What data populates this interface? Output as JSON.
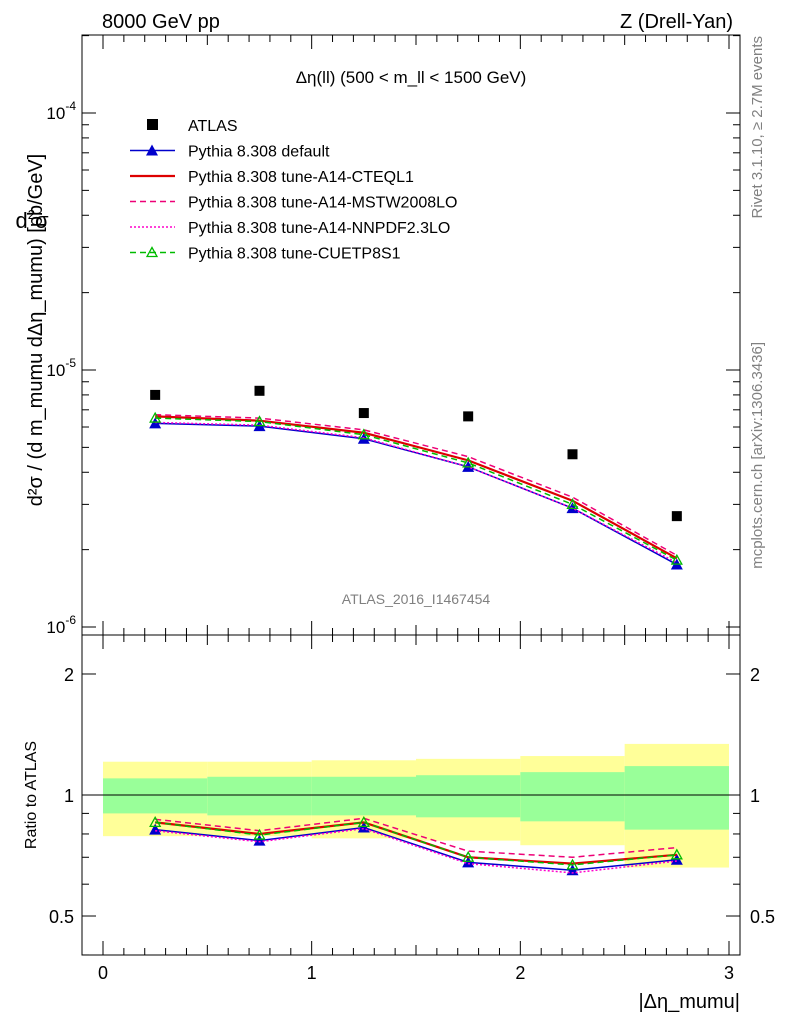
{
  "header": {
    "left": "8000 GeV pp",
    "right": "Z (Drell-Yan)"
  },
  "side_text": {
    "rivet": "Rivet 3.1.10, ≥ 2.7M events",
    "mcplots": "mcplots.cern.ch [arXiv:1306.3436]"
  },
  "watermark": "ATLAS_2016_I1467454",
  "ratio_label": "Ratio to ATLAS",
  "chart_data": {
    "type": "line",
    "title": "Δη(ll) (500 < m_ll < 1500 GeV)",
    "xlabel": "|Δη_mumu|",
    "ylabel": "d²σ / (d m_mumu dΔη_mumu) [pb/GeV]",
    "xlim": [
      0,
      3
    ],
    "ylim": [
      1e-06,
      0.0002
    ],
    "yscale": "log",
    "ratio_ylim": [
      0.35,
      2.3
    ],
    "x": [
      0.25,
      0.75,
      1.25,
      1.75,
      2.25,
      2.75
    ],
    "bin_edges": [
      0,
      0.5,
      1.0,
      1.5,
      2.0,
      2.5,
      3.0
    ],
    "legend_position": "top-left",
    "xticks": [
      "0",
      "1",
      "2",
      "3"
    ],
    "yticks_main": [
      "10^-6",
      "10^-5",
      "10^-4"
    ],
    "yticks_ratio": [
      "0.5",
      "1",
      "2"
    ],
    "data": {
      "name": "ATLAS",
      "values": [
        8e-06,
        8.3e-06,
        6.8e-06,
        6.6e-06,
        4.7e-06,
        2.7e-06
      ],
      "band_inner": [
        0.1,
        0.11,
        0.11,
        0.12,
        0.14,
        0.18
      ],
      "band_outer": [
        0.21,
        0.21,
        0.22,
        0.23,
        0.25,
        0.34
      ]
    },
    "series": [
      {
        "name": "Pythia 8.308 default",
        "color": "#0000cc",
        "style": "solid-triangle",
        "values": [
          6.2e-06,
          6.05e-06,
          5.4e-06,
          4.2e-06,
          2.9e-06,
          1.75e-06
        ],
        "ratio": [
          0.82,
          0.77,
          0.83,
          0.68,
          0.65,
          0.69
        ]
      },
      {
        "name": "Pythia 8.308 tune-A14-CTEQL1",
        "color": "#dd0000",
        "style": "solid",
        "values": [
          6.6e-06,
          6.35e-06,
          5.7e-06,
          4.45e-06,
          3.1e-06,
          1.85e-06
        ],
        "ratio": [
          0.855,
          0.8,
          0.855,
          0.7,
          0.675,
          0.71
        ]
      },
      {
        "name": "Pythia 8.308 tune-A14-MSTW2008LO",
        "color": "#ee0077",
        "style": "dashed",
        "values": [
          6.7e-06,
          6.5e-06,
          5.85e-06,
          4.6e-06,
          3.2e-06,
          1.9e-06
        ],
        "ratio": [
          0.87,
          0.815,
          0.875,
          0.725,
          0.7,
          0.74
        ]
      },
      {
        "name": "Pythia 8.308 tune-A14-NNPDF2.3LO",
        "color": "#ff00cc",
        "style": "dotted",
        "values": [
          6.25e-06,
          6.1e-06,
          5.45e-06,
          4.2e-06,
          2.9e-06,
          1.78e-06
        ],
        "ratio": [
          0.815,
          0.765,
          0.825,
          0.675,
          0.64,
          0.685
        ]
      },
      {
        "name": "Pythia 8.308 tune-CUETP8S1",
        "color": "#00bb00",
        "style": "dashed-open-triangle",
        "values": [
          6.5e-06,
          6.3e-06,
          5.6e-06,
          4.35e-06,
          3e-06,
          1.82e-06
        ],
        "ratio": [
          0.855,
          0.795,
          0.855,
          0.7,
          0.67,
          0.71
        ]
      }
    ]
  }
}
